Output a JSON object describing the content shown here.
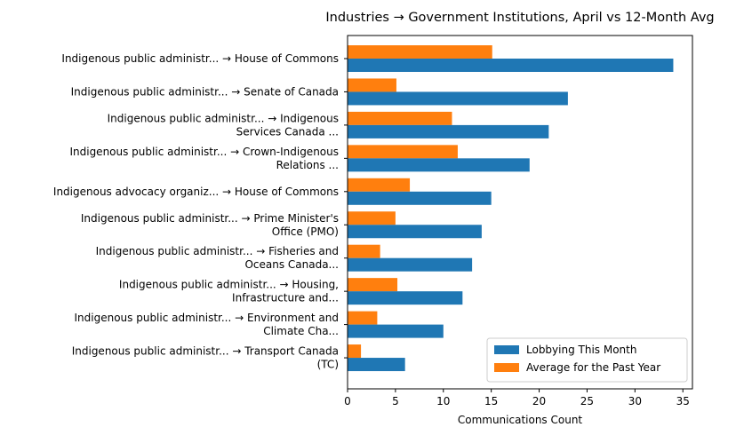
{
  "chart_data": {
    "type": "bar",
    "orientation": "horizontal",
    "title": "Industries → Government Institutions, April vs 12-Month Avg",
    "xlabel": "Communications Count",
    "ylabel": "",
    "xlim": [
      0,
      36
    ],
    "xticks": [
      0,
      5,
      10,
      15,
      20,
      25,
      30,
      35
    ],
    "grid": false,
    "legend_position": "lower-right",
    "categories": [
      [
        "Indigenous public administr... → House of Commons"
      ],
      [
        "Indigenous public administr... → Senate of Canada"
      ],
      [
        "Indigenous public administr... → Indigenous",
        "Services Canada ..."
      ],
      [
        "Indigenous public administr... → Crown-Indigenous",
        "Relations ..."
      ],
      [
        "Indigenous advocacy organiz... → House of Commons"
      ],
      [
        "Indigenous public administr... → Prime Minister's",
        "Office (PMO)"
      ],
      [
        "Indigenous public administr... → Fisheries and",
        "Oceans Canada..."
      ],
      [
        "Indigenous public administr... → Housing,",
        "Infrastructure and..."
      ],
      [
        "Indigenous public administr... → Environment and",
        "Climate Cha..."
      ],
      [
        "Indigenous public administr... → Transport Canada",
        "(TC)"
      ]
    ],
    "series": [
      {
        "name": "Lobbying This Month",
        "color": "#1f77b4",
        "values": [
          34,
          23,
          21,
          19,
          15,
          14,
          13,
          12,
          10,
          6
        ]
      },
      {
        "name": "Average for the Past Year",
        "color": "#ff7f0e",
        "values": [
          15.1,
          5.1,
          10.9,
          11.5,
          6.5,
          5.0,
          3.4,
          5.2,
          3.1,
          1.4
        ]
      }
    ]
  }
}
